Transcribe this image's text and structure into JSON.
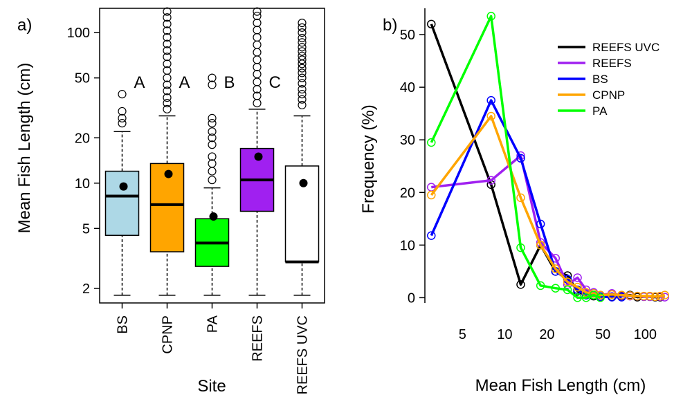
{
  "chart_data": [
    {
      "panel": "a)",
      "type": "box",
      "ylabel": "Mean Fish Length (cm)",
      "xlabel": "Site",
      "y_scale": "log",
      "ylim": [
        1.6,
        145
      ],
      "yticks": [
        2,
        5,
        10,
        20,
        50,
        100
      ],
      "categories": [
        "BS",
        "CPNP",
        "PA",
        "REEFS",
        "REEFS UVC"
      ],
      "boxes": [
        {
          "site": "BS",
          "color": "#add8e6",
          "whisker_low": 1.8,
          "q1": 4.5,
          "median": 8.2,
          "q3": 12.0,
          "whisker_high": 22.0,
          "mean": 9.5,
          "outliers": [
            25,
            27,
            30,
            39
          ],
          "letter": "A"
        },
        {
          "site": "CPNP",
          "color": "#ffa500",
          "whisker_low": 1.8,
          "q1": 3.5,
          "median": 7.2,
          "q3": 13.5,
          "whisker_high": 28.0,
          "mean": 11.5,
          "outliers": [
            31,
            34,
            37,
            41,
            45,
            50,
            56,
            62,
            69,
            76,
            84,
            93,
            103,
            114,
            126,
            138
          ],
          "letter": "A"
        },
        {
          "site": "PA",
          "color": "#00ff00",
          "whisker_low": 1.8,
          "q1": 2.8,
          "median": 4.0,
          "q3": 5.8,
          "whisker_high": 9.3,
          "mean": 6.0,
          "outliers": [
            10.5,
            12,
            13.5,
            15,
            18,
            20,
            22,
            25,
            27,
            45,
            50
          ],
          "letter": "B"
        },
        {
          "site": "REEFS",
          "color": "#a020f0",
          "whisker_low": 1.8,
          "q1": 6.5,
          "median": 10.5,
          "q3": 17.0,
          "whisker_high": 31.0,
          "mean": 15.0,
          "outliers": [
            34,
            38,
            42,
            47,
            53,
            59,
            66,
            74,
            83,
            93,
            104,
            116,
            129,
            138
          ],
          "letter": "C"
        },
        {
          "site": "REEFS UVC",
          "color": "#ffffff",
          "whisker_low": 1.8,
          "q1": 3.0,
          "median": 3.0,
          "q3": 13.0,
          "whisker_high": 28.0,
          "mean": 10.0,
          "outliers": [
            33,
            36,
            39,
            42,
            46,
            50,
            54,
            58,
            62,
            66,
            70,
            75,
            80,
            86,
            92,
            100,
            108,
            116
          ],
          "letter": ""
        }
      ]
    },
    {
      "panel": "b)",
      "type": "line",
      "xlabel": "Mean Fish Length (cm)",
      "ylabel": "Frequency (%)",
      "x_scale": "log",
      "xlim": [
        2.7,
        150
      ],
      "ylim": [
        -1,
        55
      ],
      "xticks": [
        5,
        10,
        20,
        50,
        100
      ],
      "yticks": [
        0,
        10,
        20,
        30,
        40,
        50
      ],
      "legend_position": "top-right",
      "series": [
        {
          "name": "REEFS UVC",
          "color": "#000000",
          "points": [
            [
              3,
              52
            ],
            [
              8,
              21.5
            ],
            [
              13,
              2.5
            ],
            [
              18,
              10
            ],
            [
              23,
              5
            ],
            [
              28,
              4.2
            ],
            [
              33,
              1.2
            ],
            [
              38,
              0.5
            ],
            [
              43,
              0.3
            ],
            [
              48,
              0.2
            ],
            [
              58,
              0.2
            ],
            [
              68,
              0.3
            ],
            [
              78,
              0.5
            ],
            [
              88,
              0.1
            ],
            [
              98,
              0.2
            ],
            [
              108,
              0.2
            ],
            [
              118,
              0.1
            ],
            [
              128,
              0.1
            ]
          ]
        },
        {
          "name": "REEFS",
          "color": "#a020f0",
          "points": [
            [
              3,
              21
            ],
            [
              8,
              22.3
            ],
            [
              13,
              27
            ],
            [
              18,
              10.5
            ],
            [
              23,
              7.5
            ],
            [
              28,
              2.5
            ],
            [
              33,
              3.8
            ],
            [
              38,
              1.5
            ],
            [
              43,
              1.0
            ],
            [
              48,
              0.5
            ],
            [
              58,
              0.8
            ],
            [
              68,
              0.4
            ],
            [
              78,
              0.3
            ],
            [
              88,
              0.3
            ],
            [
              98,
              0.2
            ],
            [
              108,
              0.2
            ],
            [
              118,
              0.2
            ],
            [
              128,
              0.2
            ],
            [
              138,
              0.1
            ]
          ]
        },
        {
          "name": "BS",
          "color": "#0000ff",
          "points": [
            [
              3,
              11.8
            ],
            [
              8,
              37.5
            ],
            [
              13,
              26.5
            ],
            [
              18,
              14
            ],
            [
              23,
              5
            ],
            [
              28,
              3.5
            ],
            [
              33,
              1.5
            ],
            [
              38,
              0.5
            ],
            [
              43,
              0.8
            ],
            [
              48,
              0.2
            ],
            [
              58,
              0.1
            ],
            [
              68,
              0.1
            ]
          ]
        },
        {
          "name": "CPNP",
          "color": "#ffa500",
          "points": [
            [
              3,
              19.5
            ],
            [
              8,
              34.5
            ],
            [
              13,
              19
            ],
            [
              18,
              10
            ],
            [
              23,
              5.5
            ],
            [
              28,
              3
            ],
            [
              33,
              2
            ],
            [
              38,
              1
            ],
            [
              43,
              0.8
            ],
            [
              48,
              0.5
            ],
            [
              58,
              0.6
            ],
            [
              68,
              0.5
            ],
            [
              78,
              0.4
            ],
            [
              88,
              0.3
            ],
            [
              98,
              0.3
            ],
            [
              108,
              0.3
            ],
            [
              118,
              0.2
            ],
            [
              128,
              0.3
            ],
            [
              138,
              0.5
            ]
          ]
        },
        {
          "name": "PA",
          "color": "#00ff00",
          "points": [
            [
              3,
              29.5
            ],
            [
              8,
              53.5
            ],
            [
              13,
              9.5
            ],
            [
              18,
              2.3
            ],
            [
              23,
              1.8
            ],
            [
              28,
              1.5
            ],
            [
              33,
              0
            ],
            [
              38,
              0
            ],
            [
              43,
              0.5
            ],
            [
              48,
              0
            ]
          ]
        }
      ]
    }
  ]
}
